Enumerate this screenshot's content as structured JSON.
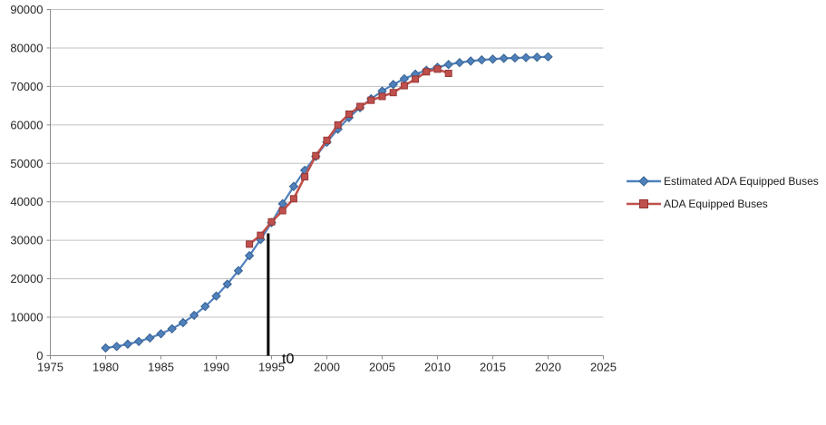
{
  "chart_data": {
    "type": "line",
    "title": "",
    "xlabel": "",
    "ylabel": "",
    "xlim": [
      1975,
      2025
    ],
    "ylim": [
      0,
      90000
    ],
    "x_ticks": [
      1975,
      1980,
      1985,
      1990,
      1995,
      2000,
      2005,
      2010,
      2015,
      2020,
      2025
    ],
    "y_ticks": [
      0,
      10000,
      20000,
      30000,
      40000,
      50000,
      60000,
      70000,
      80000,
      90000
    ],
    "grid": "horizontal-only",
    "legend_position": "right-middle",
    "colors": {
      "background": "#ffffff",
      "grid": "#c0c0c0",
      "axis": "#8c8c8c",
      "tick_text": "#262626",
      "annotation": "#000000"
    },
    "series": [
      {
        "name": "Estimated ADA Equipped Buses",
        "color": "#4f81bd",
        "edge": "#38618f",
        "marker": "diamond",
        "x": [
          1980,
          1981,
          1982,
          1983,
          1984,
          1985,
          1986,
          1987,
          1988,
          1989,
          1990,
          1991,
          1992,
          1993,
          1994,
          1995,
          1996,
          1997,
          1998,
          1999,
          2000,
          2001,
          2002,
          2003,
          2004,
          2005,
          2006,
          2007,
          2008,
          2009,
          2010,
          2011,
          2012,
          2013,
          2014,
          2015,
          2016,
          2017,
          2018,
          2019,
          2020
        ],
        "values": [
          2000,
          2400,
          3000,
          3700,
          4600,
          5700,
          7000,
          8600,
          10500,
          12800,
          15500,
          18600,
          22100,
          26000,
          30200,
          34600,
          39500,
          44000,
          48200,
          51800,
          55500,
          58900,
          61900,
          64500,
          66800,
          68800,
          70500,
          72000,
          73200,
          74200,
          75000,
          75700,
          76200,
          76600,
          76900,
          77100,
          77300,
          77400,
          77500,
          77600,
          77700
        ]
      },
      {
        "name": "ADA Equipped Buses",
        "color": "#c0504d",
        "edge": "#943734",
        "marker": "square",
        "x": [
          1993,
          1994,
          1995,
          1996,
          1997,
          1998,
          1999,
          2000,
          2001,
          2002,
          2003,
          2004,
          2005,
          2006,
          2007,
          2008,
          2009,
          2010,
          2011
        ],
        "values": [
          29000,
          31300,
          34800,
          37700,
          40800,
          46500,
          52000,
          56000,
          60000,
          62800,
          64800,
          66400,
          67400,
          68400,
          70200,
          71900,
          73800,
          74500,
          73400
        ]
      }
    ],
    "annotation": {
      "label": "t0",
      "x_year": 1994.7,
      "y_top_value": 31800,
      "y_bottom_value": 0
    }
  }
}
